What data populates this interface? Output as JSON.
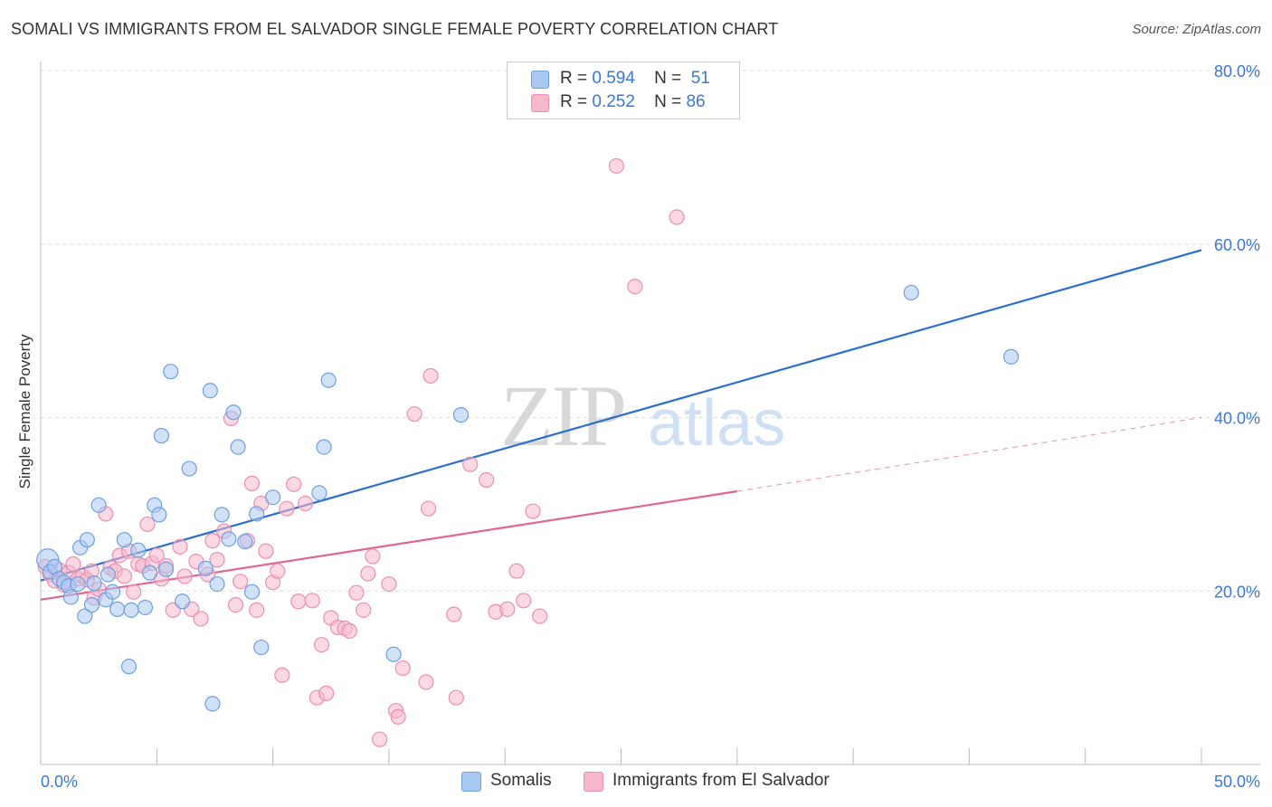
{
  "header": {
    "title": "SOMALI VS IMMIGRANTS FROM EL SALVADOR SINGLE FEMALE POVERTY CORRELATION CHART",
    "source": "Source: ZipAtlas.com"
  },
  "legend": {
    "rows": [
      {
        "r_label": "R =",
        "r_value": "0.594",
        "n_label": "N =",
        "n_value": "51"
      },
      {
        "r_label": "R =",
        "r_value": "0.252",
        "n_label": "N =",
        "n_value": "86"
      }
    ]
  },
  "bottom_legend": [
    "Somalis",
    "Immigrants from El Salvador"
  ],
  "watermark": {
    "part1": "ZIP",
    "part2": "atlas"
  },
  "colors": {
    "somalis_fill": "#a9c8f2",
    "somalis_stroke": "#6fa0e0",
    "somalis_line": "#2a6fcf",
    "salvador_fill": "#f8b8cc",
    "salvador_stroke": "#ec8fae",
    "salvador_line": "#e2668f",
    "tick_label": "#3a78d8",
    "grid": "#dddddd"
  },
  "chart_data": {
    "type": "scatter",
    "title": "SOMALI VS IMMIGRANTS FROM EL SALVADOR SINGLE FEMALE POVERTY CORRELATION CHART",
    "xlabel": "",
    "ylabel": "Single Female Poverty",
    "xlim": [
      0,
      50
    ],
    "ylim": [
      0,
      80
    ],
    "x_tick_labels": [
      "0.0%",
      "50.0%"
    ],
    "y_ticks": [
      20,
      40,
      60,
      80
    ],
    "y_tick_labels": [
      "20.0%",
      "40.0%",
      "60.0%",
      "80.0%"
    ],
    "grid": true,
    "legend_position": "top-center",
    "series": [
      {
        "name": "Somalis",
        "r": 0.594,
        "n": 51,
        "trend": {
          "x": [
            0,
            50
          ],
          "y": [
            21.2,
            59.3
          ],
          "style": "solid"
        },
        "points": [
          [
            0.3,
            23.6
          ],
          [
            0.4,
            22.2
          ],
          [
            0.6,
            22.8
          ],
          [
            0.8,
            21.4
          ],
          [
            1.0,
            21.0
          ],
          [
            1.2,
            20.6
          ],
          [
            1.3,
            19.3
          ],
          [
            1.6,
            20.8
          ],
          [
            1.7,
            25.0
          ],
          [
            1.9,
            17.1
          ],
          [
            2.0,
            25.9
          ],
          [
            2.2,
            18.4
          ],
          [
            2.3,
            20.9
          ],
          [
            2.5,
            29.9
          ],
          [
            2.8,
            19.0
          ],
          [
            2.9,
            21.9
          ],
          [
            3.1,
            19.9
          ],
          [
            3.3,
            17.9
          ],
          [
            3.6,
            25.9
          ],
          [
            3.8,
            11.3
          ],
          [
            3.9,
            17.8
          ],
          [
            4.2,
            24.7
          ],
          [
            4.5,
            18.1
          ],
          [
            4.7,
            22.1
          ],
          [
            4.9,
            29.9
          ],
          [
            5.1,
            28.8
          ],
          [
            5.2,
            37.9
          ],
          [
            5.4,
            22.5
          ],
          [
            5.6,
            45.3
          ],
          [
            6.1,
            18.8
          ],
          [
            6.4,
            34.1
          ],
          [
            7.1,
            22.6
          ],
          [
            7.3,
            43.1
          ],
          [
            7.4,
            7.0
          ],
          [
            7.6,
            20.8
          ],
          [
            7.8,
            28.8
          ],
          [
            8.1,
            26.0
          ],
          [
            8.3,
            40.6
          ],
          [
            8.5,
            36.6
          ],
          [
            8.8,
            25.7
          ],
          [
            9.1,
            19.9
          ],
          [
            9.3,
            28.9
          ],
          [
            9.5,
            13.5
          ],
          [
            10.0,
            30.8
          ],
          [
            12.0,
            31.3
          ],
          [
            12.2,
            36.6
          ],
          [
            12.4,
            44.3
          ],
          [
            15.2,
            12.7
          ],
          [
            18.1,
            40.3
          ],
          [
            37.5,
            54.4
          ],
          [
            41.8,
            47.0
          ]
        ]
      },
      {
        "name": "Immigrants from El Salvador",
        "r": 0.252,
        "n": 86,
        "trend": {
          "x": [
            0,
            30
          ],
          "y": [
            19.0,
            31.5
          ],
          "style": "solid",
          "extension": {
            "x": [
              30,
              50
            ],
            "y": [
              31.5,
              40.0
            ],
            "style": "dashed"
          }
        },
        "points": [
          [
            0.2,
            22.8
          ],
          [
            0.4,
            21.9
          ],
          [
            0.6,
            21.2
          ],
          [
            0.8,
            22.4
          ],
          [
            1.0,
            20.7
          ],
          [
            1.2,
            22.1
          ],
          [
            1.4,
            23.1
          ],
          [
            1.6,
            21.4
          ],
          [
            1.8,
            21.7
          ],
          [
            2.0,
            21.3
          ],
          [
            2.2,
            22.3
          ],
          [
            2.3,
            19.2
          ],
          [
            2.5,
            20.2
          ],
          [
            2.8,
            28.9
          ],
          [
            3.0,
            22.7
          ],
          [
            3.2,
            22.3
          ],
          [
            3.4,
            24.1
          ],
          [
            3.6,
            21.7
          ],
          [
            3.8,
            24.6
          ],
          [
            4.0,
            19.9
          ],
          [
            4.2,
            23.1
          ],
          [
            4.4,
            22.9
          ],
          [
            4.6,
            27.7
          ],
          [
            4.8,
            23.2
          ],
          [
            5.0,
            24.1
          ],
          [
            5.2,
            21.4
          ],
          [
            5.4,
            22.9
          ],
          [
            5.7,
            17.8
          ],
          [
            6.0,
            25.1
          ],
          [
            6.2,
            21.7
          ],
          [
            6.5,
            17.9
          ],
          [
            6.7,
            23.4
          ],
          [
            6.9,
            16.8
          ],
          [
            7.2,
            21.9
          ],
          [
            7.4,
            25.8
          ],
          [
            7.6,
            23.6
          ],
          [
            7.9,
            26.9
          ],
          [
            8.2,
            39.9
          ],
          [
            8.4,
            18.4
          ],
          [
            8.6,
            21.1
          ],
          [
            8.9,
            25.8
          ],
          [
            9.1,
            32.4
          ],
          [
            9.3,
            17.8
          ],
          [
            9.5,
            30.1
          ],
          [
            9.7,
            24.6
          ],
          [
            10.0,
            21.0
          ],
          [
            10.2,
            22.3
          ],
          [
            10.4,
            10.3
          ],
          [
            10.6,
            29.5
          ],
          [
            10.9,
            32.3
          ],
          [
            11.1,
            18.8
          ],
          [
            11.4,
            30.1
          ],
          [
            11.7,
            18.9
          ],
          [
            11.9,
            7.7
          ],
          [
            12.1,
            13.8
          ],
          [
            12.3,
            8.2
          ],
          [
            12.5,
            16.9
          ],
          [
            12.8,
            15.8
          ],
          [
            13.1,
            15.7
          ],
          [
            13.3,
            15.4
          ],
          [
            13.6,
            19.8
          ],
          [
            13.9,
            17.8
          ],
          [
            14.1,
            22.0
          ],
          [
            14.3,
            24.0
          ],
          [
            14.6,
            2.9
          ],
          [
            15.0,
            20.8
          ],
          [
            15.3,
            6.2
          ],
          [
            15.4,
            5.5
          ],
          [
            15.6,
            11.1
          ],
          [
            16.1,
            40.4
          ],
          [
            16.6,
            9.5
          ],
          [
            16.7,
            29.5
          ],
          [
            16.8,
            44.8
          ],
          [
            17.8,
            17.3
          ],
          [
            17.9,
            7.7
          ],
          [
            18.5,
            34.6
          ],
          [
            19.2,
            32.8
          ],
          [
            19.6,
            17.6
          ],
          [
            20.1,
            17.9
          ],
          [
            20.5,
            22.3
          ],
          [
            20.8,
            18.9
          ],
          [
            21.2,
            29.2
          ],
          [
            21.5,
            17.1
          ],
          [
            24.8,
            69.0
          ],
          [
            25.6,
            55.1
          ],
          [
            27.4,
            63.1
          ]
        ]
      }
    ]
  }
}
